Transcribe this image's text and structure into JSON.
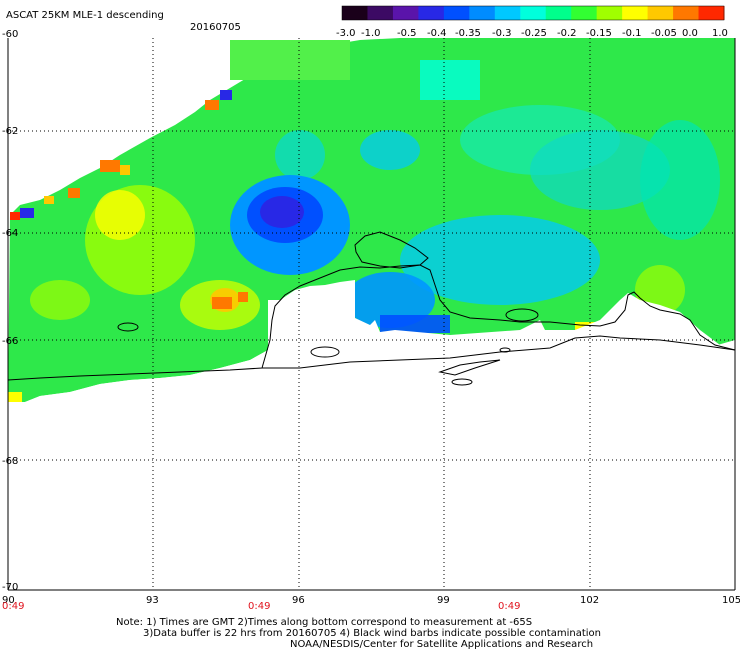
{
  "header": {
    "title": "ASCAT 25KM MLE-1 descending",
    "date": "20160705"
  },
  "colorbar": {
    "labels": [
      "-3.0",
      "-1.0",
      "-0.5",
      "-0.4",
      "-0.35",
      "-0.3",
      "-0.25",
      "-0.2",
      "-0.15",
      "-0.1",
      "-0.05",
      "0.0",
      "1.0"
    ],
    "colors": [
      "#1a001a",
      "#3c0a64",
      "#5a14aa",
      "#2828e6",
      "#0050ff",
      "#008cff",
      "#00c8ff",
      "#00ffdc",
      "#00ff8c",
      "#32ff32",
      "#a0ff00",
      "#ffff00",
      "#ffc800",
      "#ff7800",
      "#ff2800"
    ]
  },
  "axes": {
    "lat_labels": [
      "-60",
      "-62",
      "-64",
      "-66",
      "-68",
      "-70"
    ],
    "lon_labels": [
      "90",
      "93",
      "96",
      "99",
      "102",
      "105"
    ],
    "time_labels": [
      "0:49",
      "0:49",
      "0:49"
    ]
  },
  "notes": {
    "line1": "Note: 1) Times are GMT 2)Times along bottom correspond to measurement at -65S",
    "line2": "3)Data buffer is 22 hrs from 20160705 4) Black wind barbs indicate possible contamination",
    "line3": "NOAA/NESDIS/Center for Satellite Applications and Research"
  }
}
